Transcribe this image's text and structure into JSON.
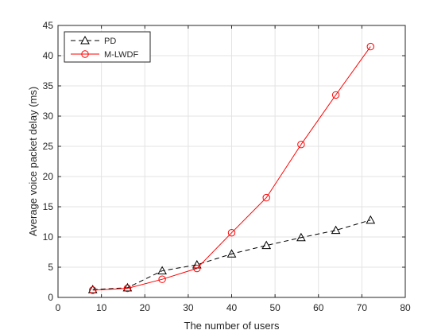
{
  "chart_data": {
    "type": "line",
    "title": "",
    "xlabel": "The number of users",
    "ylabel": "Average voice packet delay (ms)",
    "xlim": [
      0,
      80
    ],
    "ylim": [
      0,
      45
    ],
    "xticks": [
      0,
      10,
      20,
      30,
      40,
      50,
      60,
      70,
      80
    ],
    "yticks": [
      0,
      5,
      10,
      15,
      20,
      25,
      30,
      35,
      40,
      45
    ],
    "grid": true,
    "legend_position": "top-left",
    "x": [
      8,
      16,
      24,
      32,
      40,
      48,
      56,
      64,
      72
    ],
    "series": [
      {
        "name": "PD",
        "values": [
          1.3,
          1.6,
          4.4,
          5.4,
          7.2,
          8.6,
          9.9,
          11.1,
          12.8
        ],
        "color": "#000000",
        "line_style": "dashed",
        "marker": "triangle"
      },
      {
        "name": "M-LWDF",
        "values": [
          1.2,
          1.5,
          3.0,
          4.8,
          10.7,
          16.5,
          25.3,
          33.5,
          41.5
        ],
        "color": "#ff0000",
        "line_style": "solid",
        "marker": "circle"
      }
    ]
  }
}
